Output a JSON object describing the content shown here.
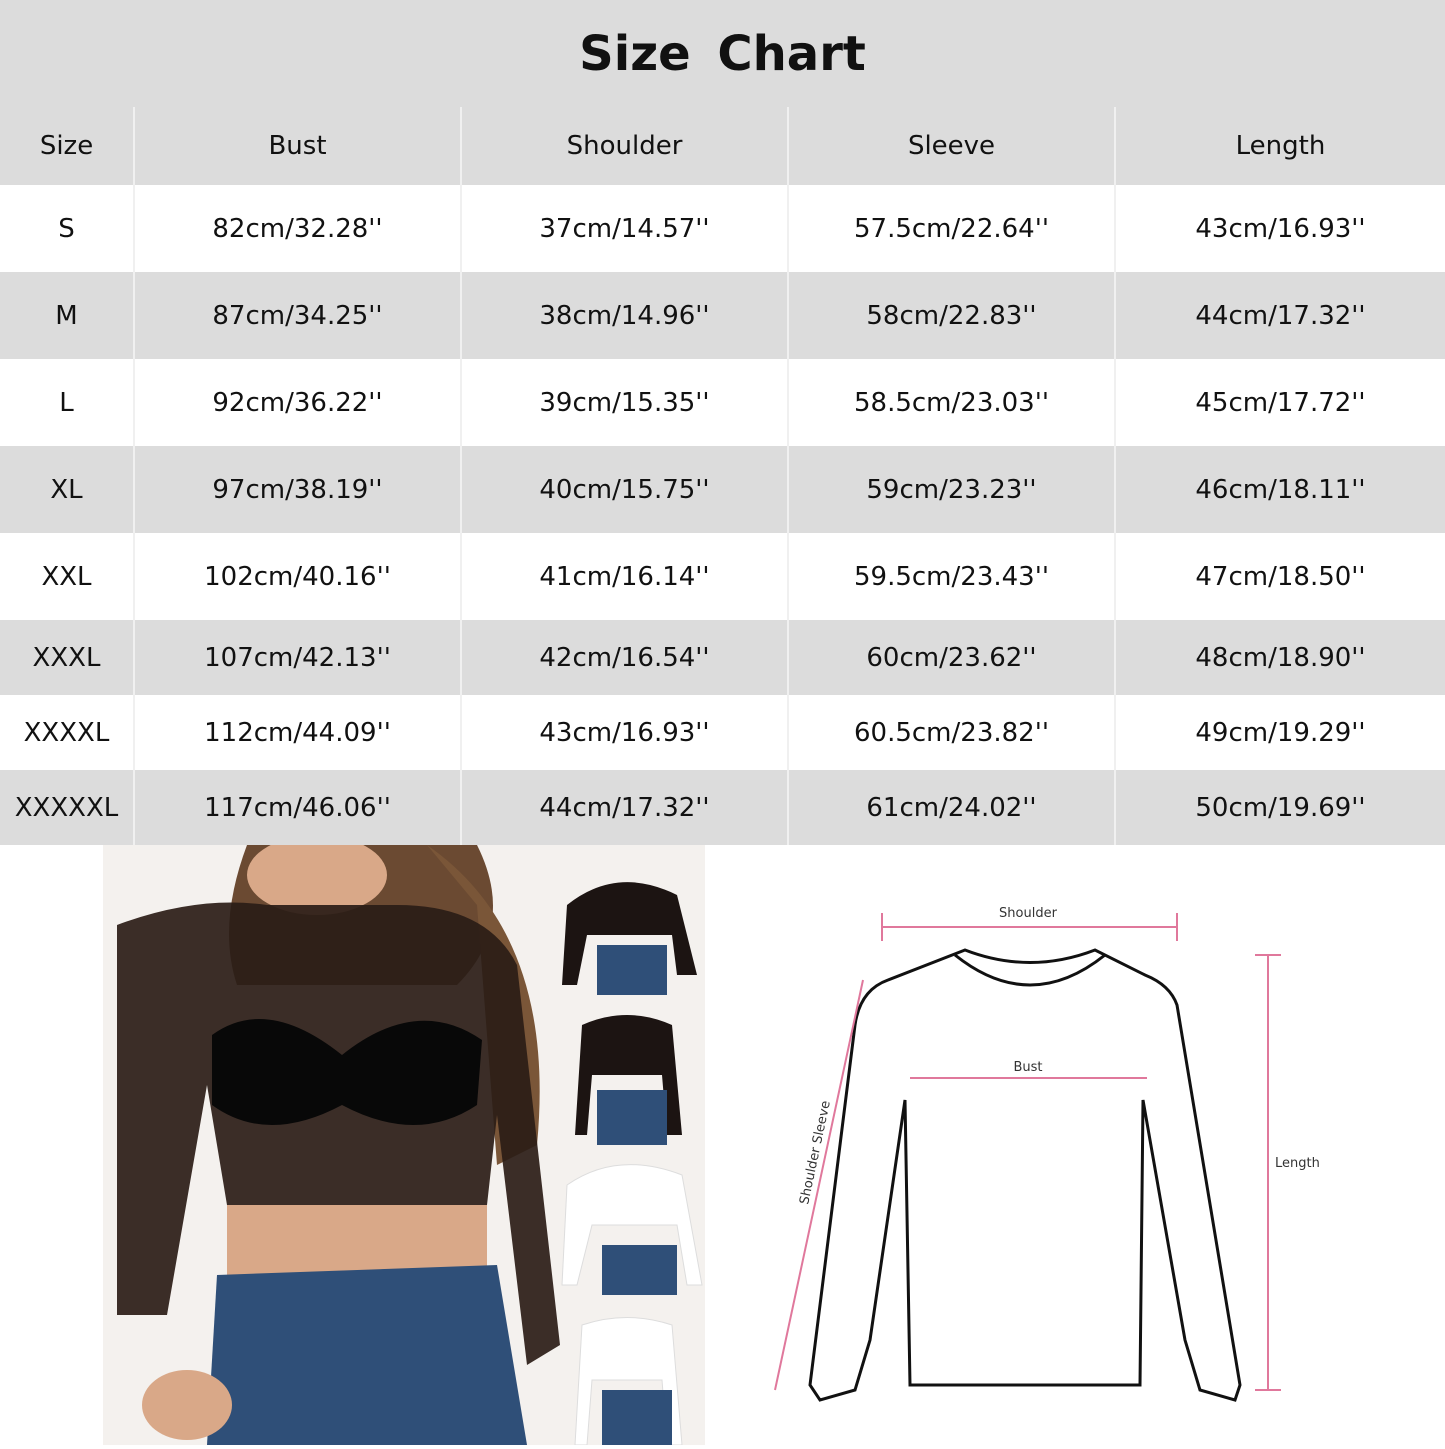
{
  "title": "Size  Chart",
  "table": {
    "headers": [
      "Size",
      "Bust",
      "Shoulder",
      "Sleeve",
      "Length"
    ],
    "rows": [
      [
        "S",
        "82cm/32.28''",
        "37cm/14.57''",
        "57.5cm/22.64''",
        "43cm/16.93''"
      ],
      [
        "M",
        "87cm/34.25''",
        "38cm/14.96''",
        "58cm/22.83''",
        "44cm/17.32''"
      ],
      [
        "L",
        "92cm/36.22''",
        "39cm/15.35''",
        "58.5cm/23.03''",
        "45cm/17.72''"
      ],
      [
        "XL",
        "97cm/38.19''",
        "40cm/15.75''",
        "59cm/23.23''",
        "46cm/18.11''"
      ],
      [
        "XXL",
        "102cm/40.16''",
        "41cm/16.14''",
        "59.5cm/23.43''",
        "47cm/18.50''"
      ],
      [
        "XXXL",
        "107cm/42.13''",
        "42cm/16.54''",
        "60cm/23.62''",
        "48cm/18.90''"
      ],
      [
        "XXXXL",
        "112cm/44.09''",
        "43cm/16.93''",
        "60.5cm/23.82''",
        "49cm/19.29''"
      ],
      [
        "XXXXXL",
        "117cm/46.06''",
        "44cm/17.32''",
        "61cm/24.02''",
        "50cm/19.69''"
      ]
    ]
  },
  "diagram": {
    "shoulder_label": "Shoulder",
    "bust_label": "Bust",
    "length_label": "Length",
    "sleeve_label": "Shoulder Sleeve",
    "arrow_color": "#e0789c"
  }
}
